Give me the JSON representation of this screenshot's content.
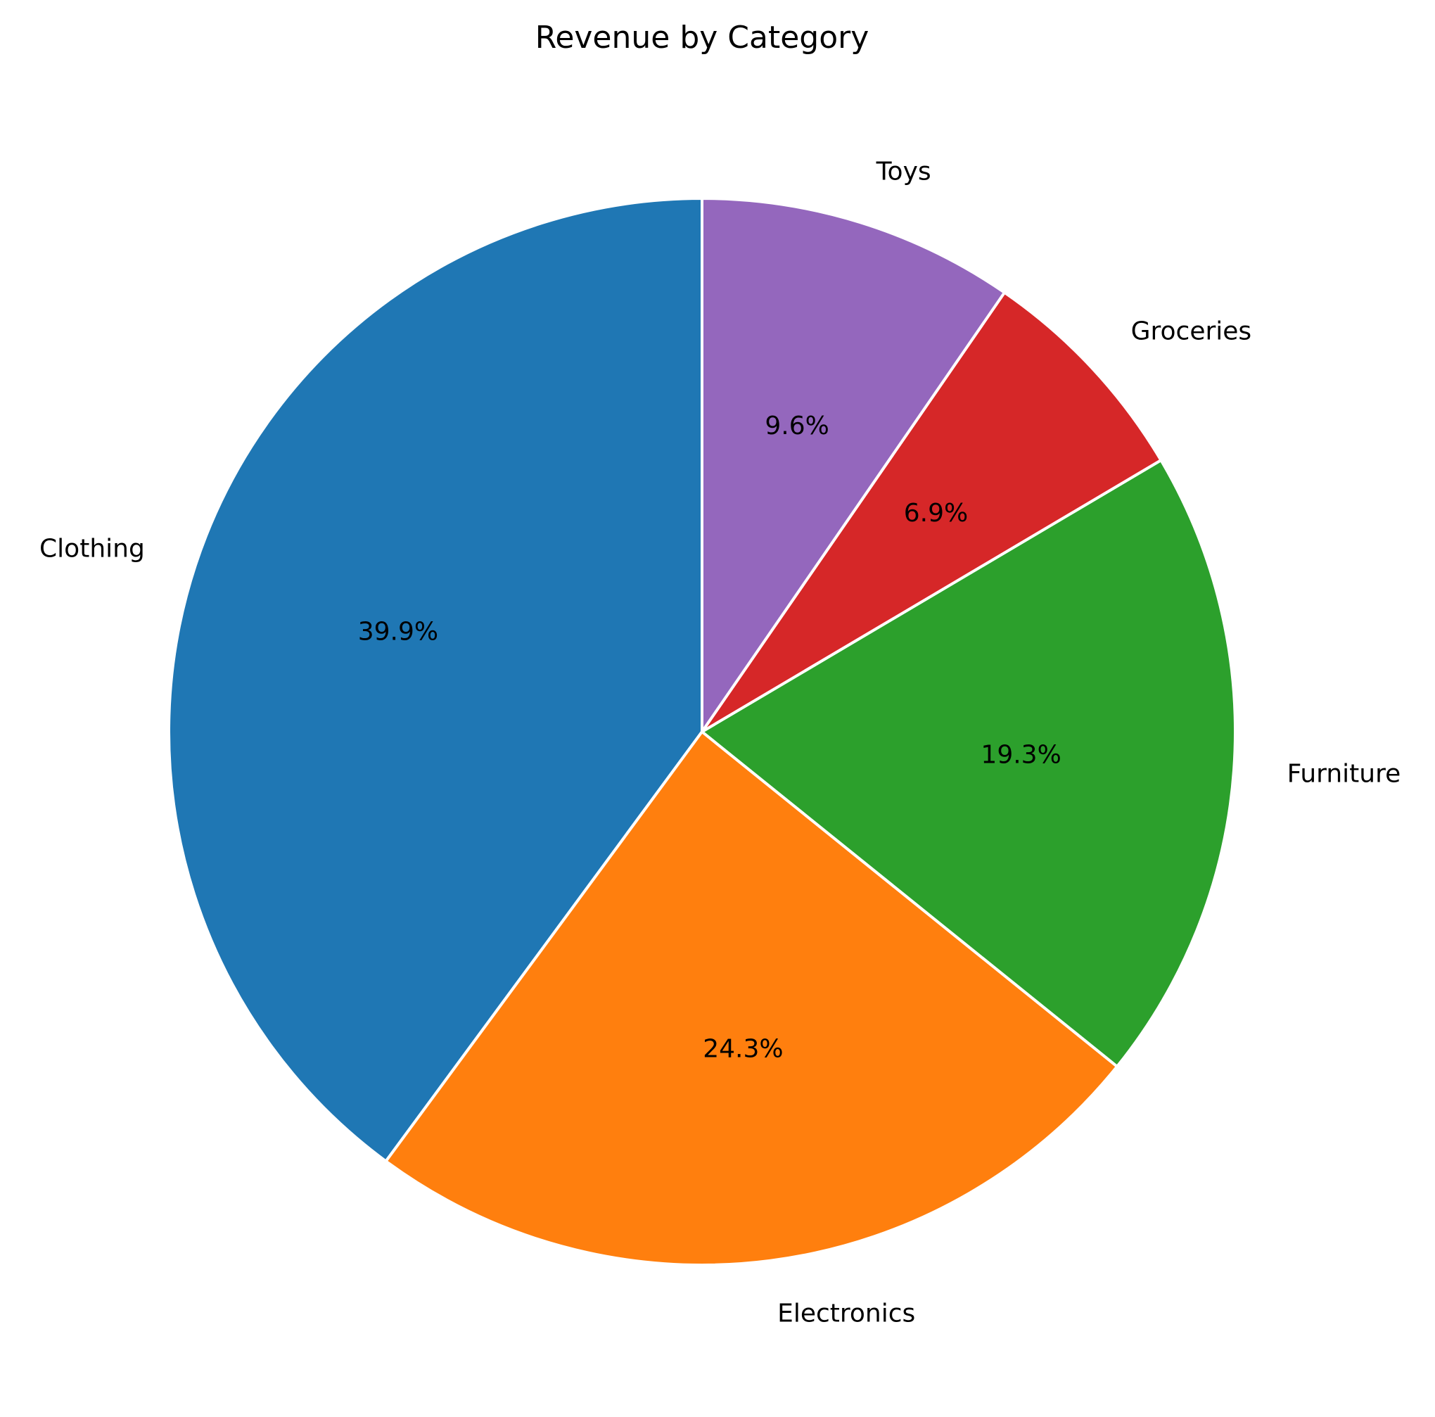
{
  "chart_data": {
    "type": "pie",
    "title": "Revenue by Category",
    "categories": [
      "Clothing",
      "Electronics",
      "Furniture",
      "Groceries",
      "Toys"
    ],
    "values": [
      39.9,
      24.3,
      19.3,
      6.9,
      9.6
    ],
    "percent_labels": [
      "39.9%",
      "24.3%",
      "19.3%",
      "6.9%",
      "9.6%"
    ],
    "colors": [
      "#1f77b4",
      "#ff7f0e",
      "#2ca02c",
      "#d62728",
      "#9467bd"
    ],
    "start_angle_deg": 90,
    "direction": "counterclockwise",
    "legend": "none"
  }
}
